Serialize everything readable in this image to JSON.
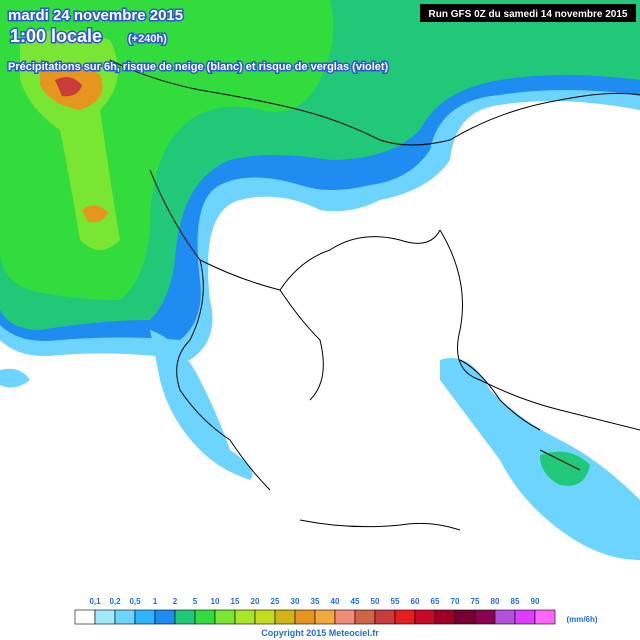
{
  "header": {
    "date": "mardi 24 novembre 2015",
    "time": "1:00 locale",
    "lead": "(+240h)",
    "subtitle": "Précipitations sur 6h, risque de neige (blanc) et risque de verglas (violet)",
    "run": "Run GFS 0Z du samedi 14 novembre 2015"
  },
  "legend": {
    "labels": [
      "0,1",
      "0,2",
      "0,5",
      "1",
      "2",
      "5",
      "10",
      "15",
      "20",
      "25",
      "30",
      "35",
      "40",
      "45",
      "50",
      "55",
      "60",
      "65",
      "70",
      "75",
      "80",
      "85",
      "90"
    ],
    "colors": [
      "#ffffff",
      "#a0eaff",
      "#6cd4ff",
      "#30b4ff",
      "#1e8cf0",
      "#20c878",
      "#32dc3c",
      "#78e632",
      "#a8e628",
      "#c8dc1e",
      "#d2b414",
      "#e6961e",
      "#f0aa3c",
      "#f08c78",
      "#d26446",
      "#c83c3c",
      "#e61e1e",
      "#c80a28",
      "#a00028",
      "#780032",
      "#8c0050",
      "#b450dc",
      "#dc3cff",
      "#ff64ff"
    ],
    "unit": "(mm/6h)"
  },
  "footer": {
    "copyright": "Copyright 2015 Meteociel.fr"
  }
}
